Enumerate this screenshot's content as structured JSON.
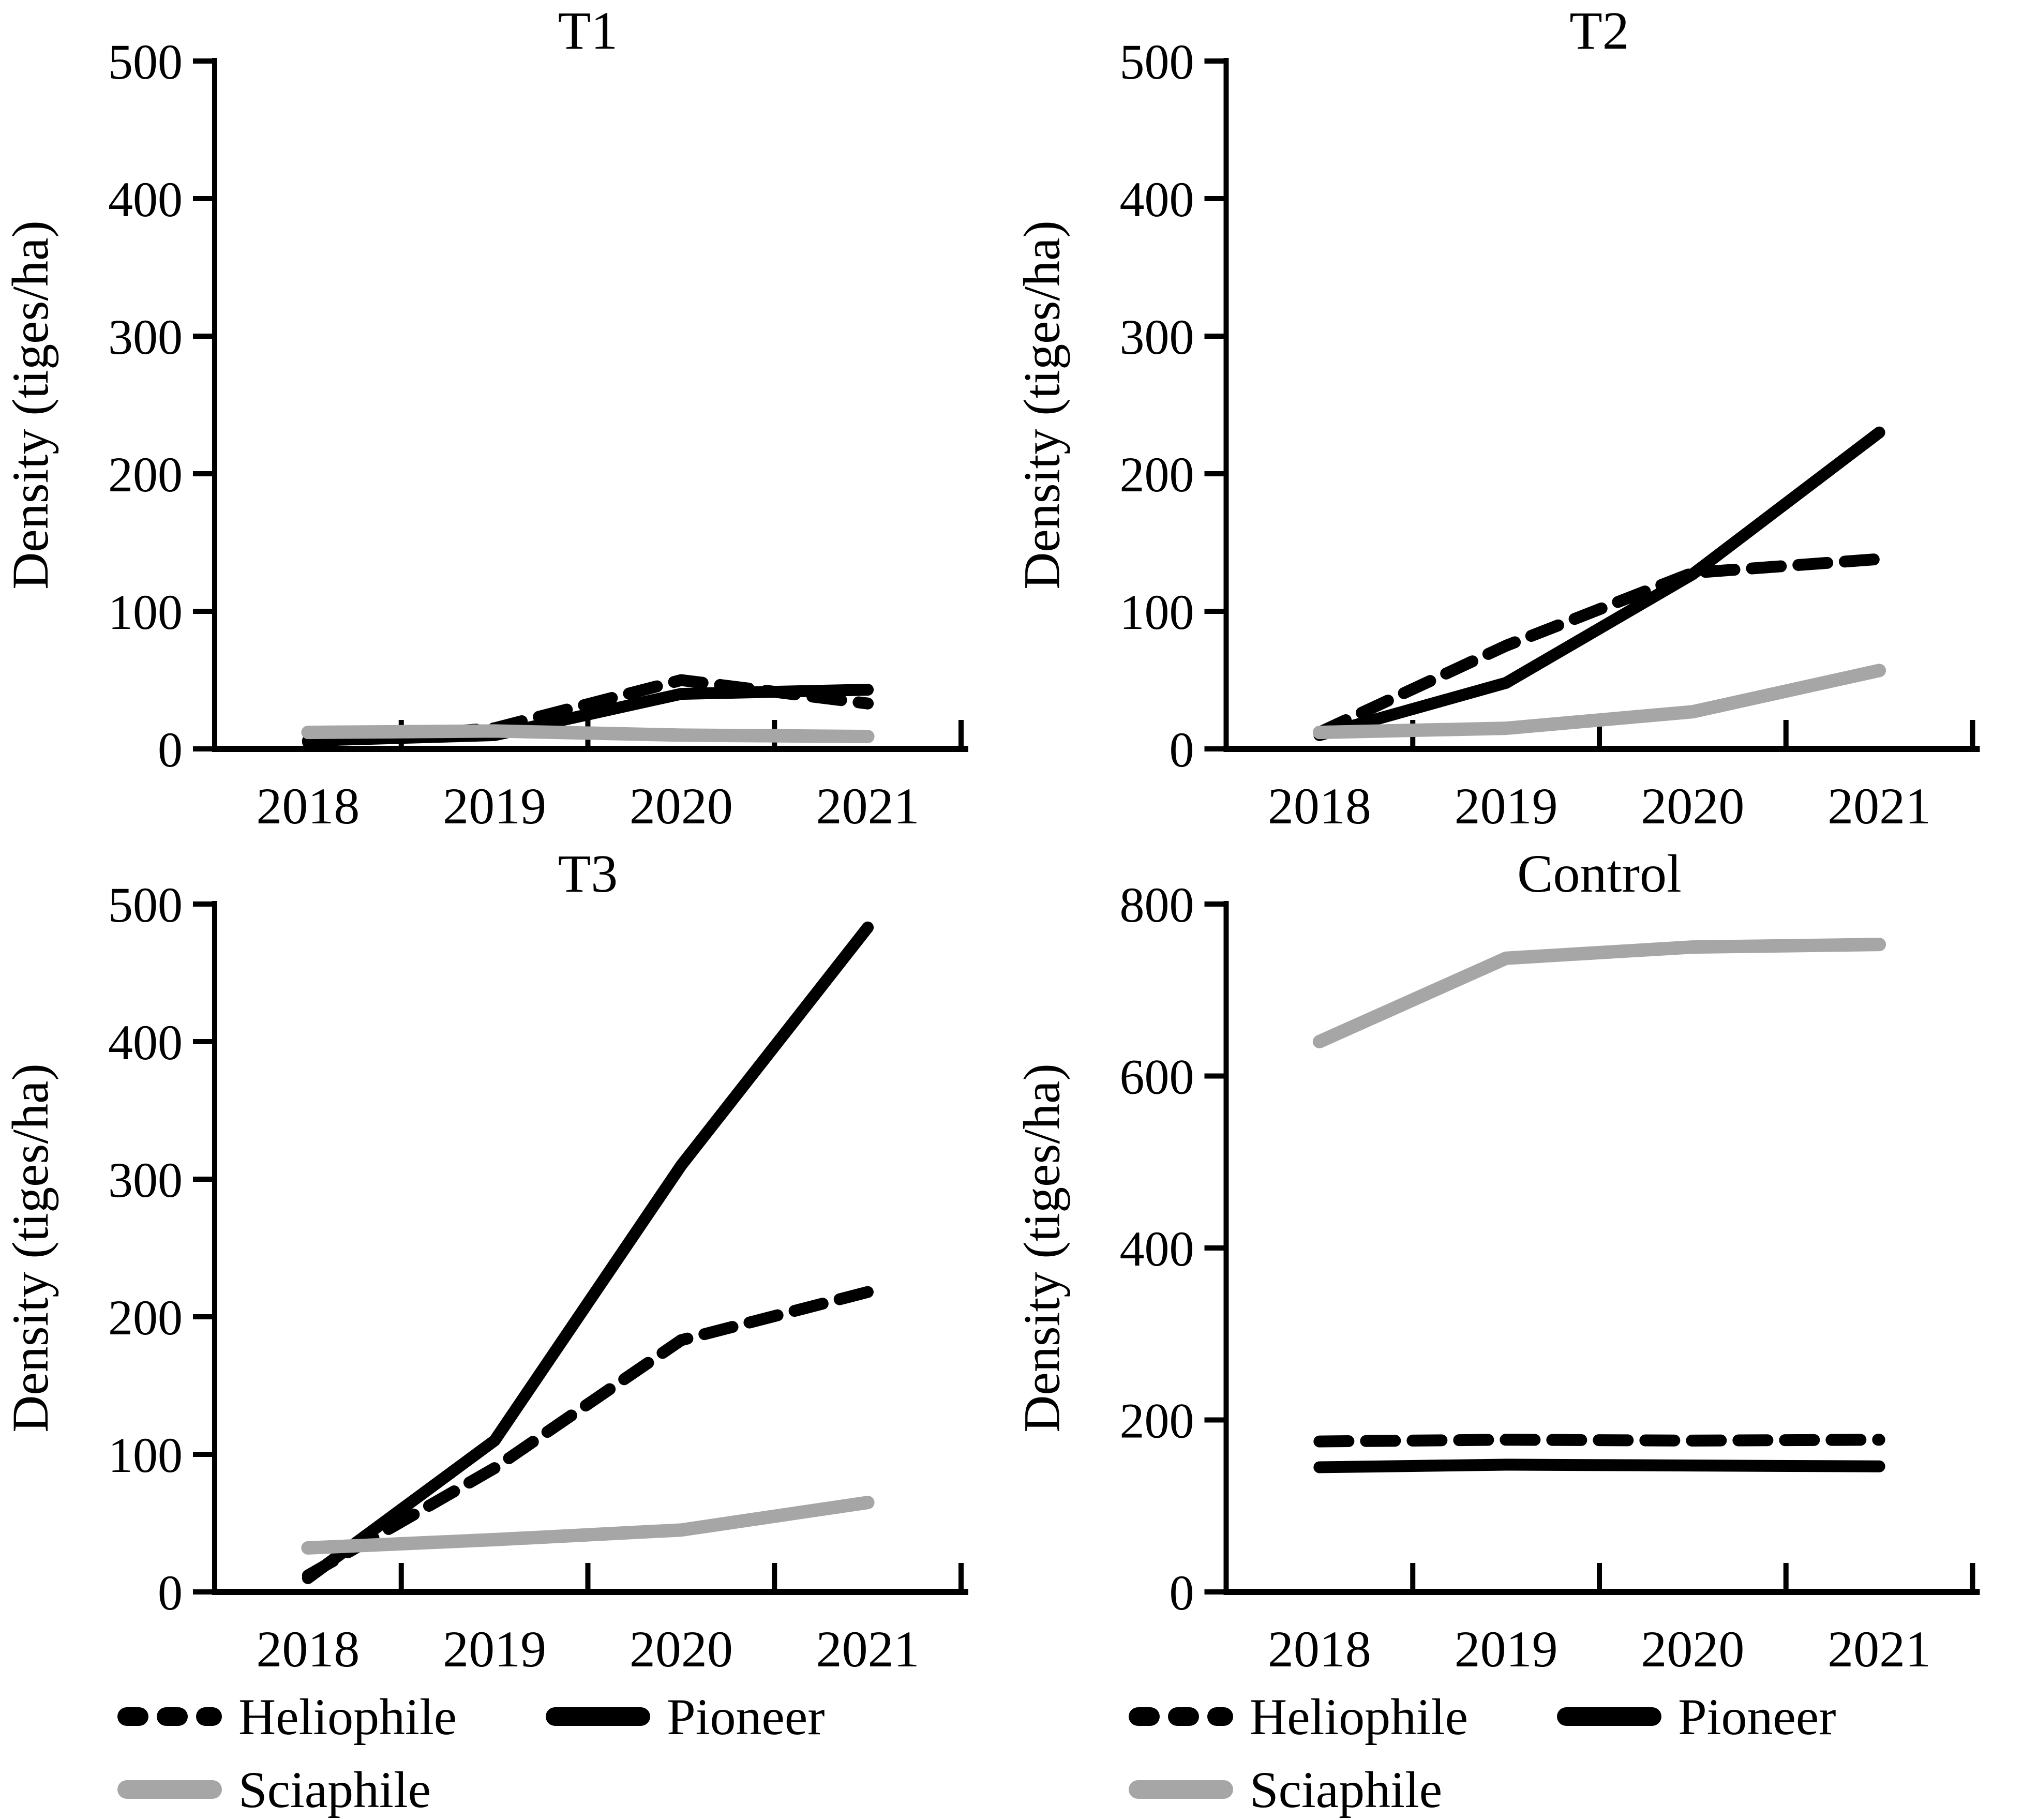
{
  "figure": {
    "background": "#ffffff",
    "axis_color": "#000000",
    "gray_color": "#a6a6a6"
  },
  "chart_data": [
    {
      "id": "t1",
      "type": "line",
      "title": "T1",
      "ylabel": "Density (tiges/ha)",
      "ylim": [
        0,
        500
      ],
      "yticks": [
        0,
        100,
        200,
        300,
        400,
        500
      ],
      "categories": [
        "2018",
        "2019",
        "2020",
        "2021"
      ],
      "grid": false,
      "series": [
        {
          "name": "Heliophile",
          "values": [
            5,
            15,
            50,
            33
          ]
        },
        {
          "name": "Pioneer",
          "values": [
            6,
            10,
            40,
            43
          ]
        },
        {
          "name": "Sciaphile",
          "values": [
            12,
            13,
            10,
            9
          ]
        }
      ]
    },
    {
      "id": "t2",
      "type": "line",
      "title": "T2",
      "ylabel": "Density (tiges/ha)",
      "ylim": [
        0,
        500
      ],
      "yticks": [
        0,
        100,
        200,
        300,
        400,
        500
      ],
      "categories": [
        "2018",
        "2019",
        "2020",
        "2021"
      ],
      "grid": false,
      "series": [
        {
          "name": "Heliophile",
          "values": [
            12,
            75,
            128,
            138
          ]
        },
        {
          "name": "Pioneer",
          "values": [
            10,
            48,
            127,
            230
          ]
        },
        {
          "name": "Sciaphile",
          "values": [
            12,
            15,
            27,
            57
          ]
        }
      ]
    },
    {
      "id": "t3",
      "type": "line",
      "title": "T3",
      "ylabel": "Density (tiges/ha)",
      "ylim": [
        0,
        500
      ],
      "yticks": [
        0,
        100,
        200,
        300,
        400,
        500
      ],
      "categories": [
        "2018",
        "2019",
        "2020",
        "2021"
      ],
      "grid": false,
      "series": [
        {
          "name": "Heliophile",
          "values": [
            12,
            90,
            183,
            218
          ]
        },
        {
          "name": "Pioneer",
          "values": [
            10,
            110,
            310,
            483
          ]
        },
        {
          "name": "Sciaphile",
          "values": [
            32,
            38,
            45,
            65
          ]
        }
      ]
    },
    {
      "id": "control",
      "type": "line",
      "title": "Control",
      "ylabel": "Density (tiges/ha)",
      "ylim": [
        0,
        800
      ],
      "yticks": [
        0,
        200,
        400,
        600,
        800
      ],
      "categories": [
        "2018",
        "2019",
        "2020",
        "2021"
      ],
      "grid": false,
      "series": [
        {
          "name": "Heliophile",
          "values": [
            175,
            177,
            176,
            177
          ]
        },
        {
          "name": "Pioneer",
          "values": [
            145,
            148,
            147,
            146
          ]
        },
        {
          "name": "Sciaphile",
          "values": [
            640,
            737,
            750,
            753
          ]
        }
      ]
    }
  ],
  "series_styles": {
    "Heliophile": {
      "color": "#000000",
      "dashed": true,
      "width": 23
    },
    "Pioneer": {
      "color": "#000000",
      "dashed": false,
      "width": 23
    },
    "Sciaphile": {
      "color": "#a6a6a6",
      "dashed": false,
      "width": 26
    }
  },
  "legend": {
    "items": [
      {
        "label": "Heliophile",
        "color": "#000000",
        "dashed": true
      },
      {
        "label": "Pioneer",
        "color": "#000000",
        "dashed": false
      },
      {
        "label": "Sciaphile",
        "color": "#a6a6a6",
        "dashed": false
      }
    ]
  }
}
